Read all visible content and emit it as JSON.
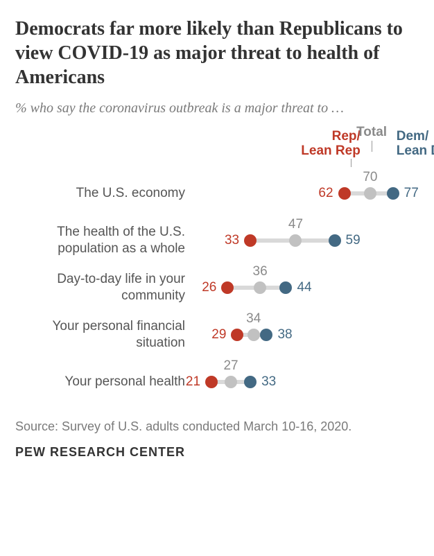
{
  "title": "Democrats far more likely than Republicans to view COVID-19 as major threat to health of Americans",
  "subtitle": "% who say the coronavirus outbreak is a major threat to …",
  "source": "Source: Survey of U.S. adults conducted March 10-16, 2020.",
  "footer": "PEW RESEARCH CENTER",
  "colors": {
    "rep": "#bf3927",
    "total": "#c1c1c1",
    "dem": "#436983",
    "connector": "#d9d9d9",
    "label": "#555555",
    "total_text": "#8a8a8a"
  },
  "legend": {
    "rep": "Rep/\nLean Rep",
    "total": "Total",
    "dem": "Dem/\nLean Dem"
  },
  "scale": {
    "min": 15,
    "max": 85
  },
  "fontsize": {
    "title": 28,
    "subtitle": 20,
    "row_label": 19,
    "value": 19,
    "legend": 19,
    "source": 18,
    "footer": 18
  },
  "rows": [
    {
      "label": "The U.S. economy",
      "rep": 62,
      "total": 70,
      "dem": 77,
      "total_pos": "above"
    },
    {
      "label": "The health of the U.S. population as a whole",
      "rep": 33,
      "total": 47,
      "dem": 59,
      "total_pos": "above"
    },
    {
      "label": "Day-to-day life in your community",
      "rep": 26,
      "total": 36,
      "dem": 44,
      "total_pos": "above"
    },
    {
      "label": "Your personal financial situation",
      "rep": 29,
      "total": 34,
      "dem": 38,
      "total_pos": "above"
    },
    {
      "label": "Your personal health",
      "rep": 21,
      "total": 27,
      "dem": 33,
      "total_pos": "above"
    }
  ]
}
